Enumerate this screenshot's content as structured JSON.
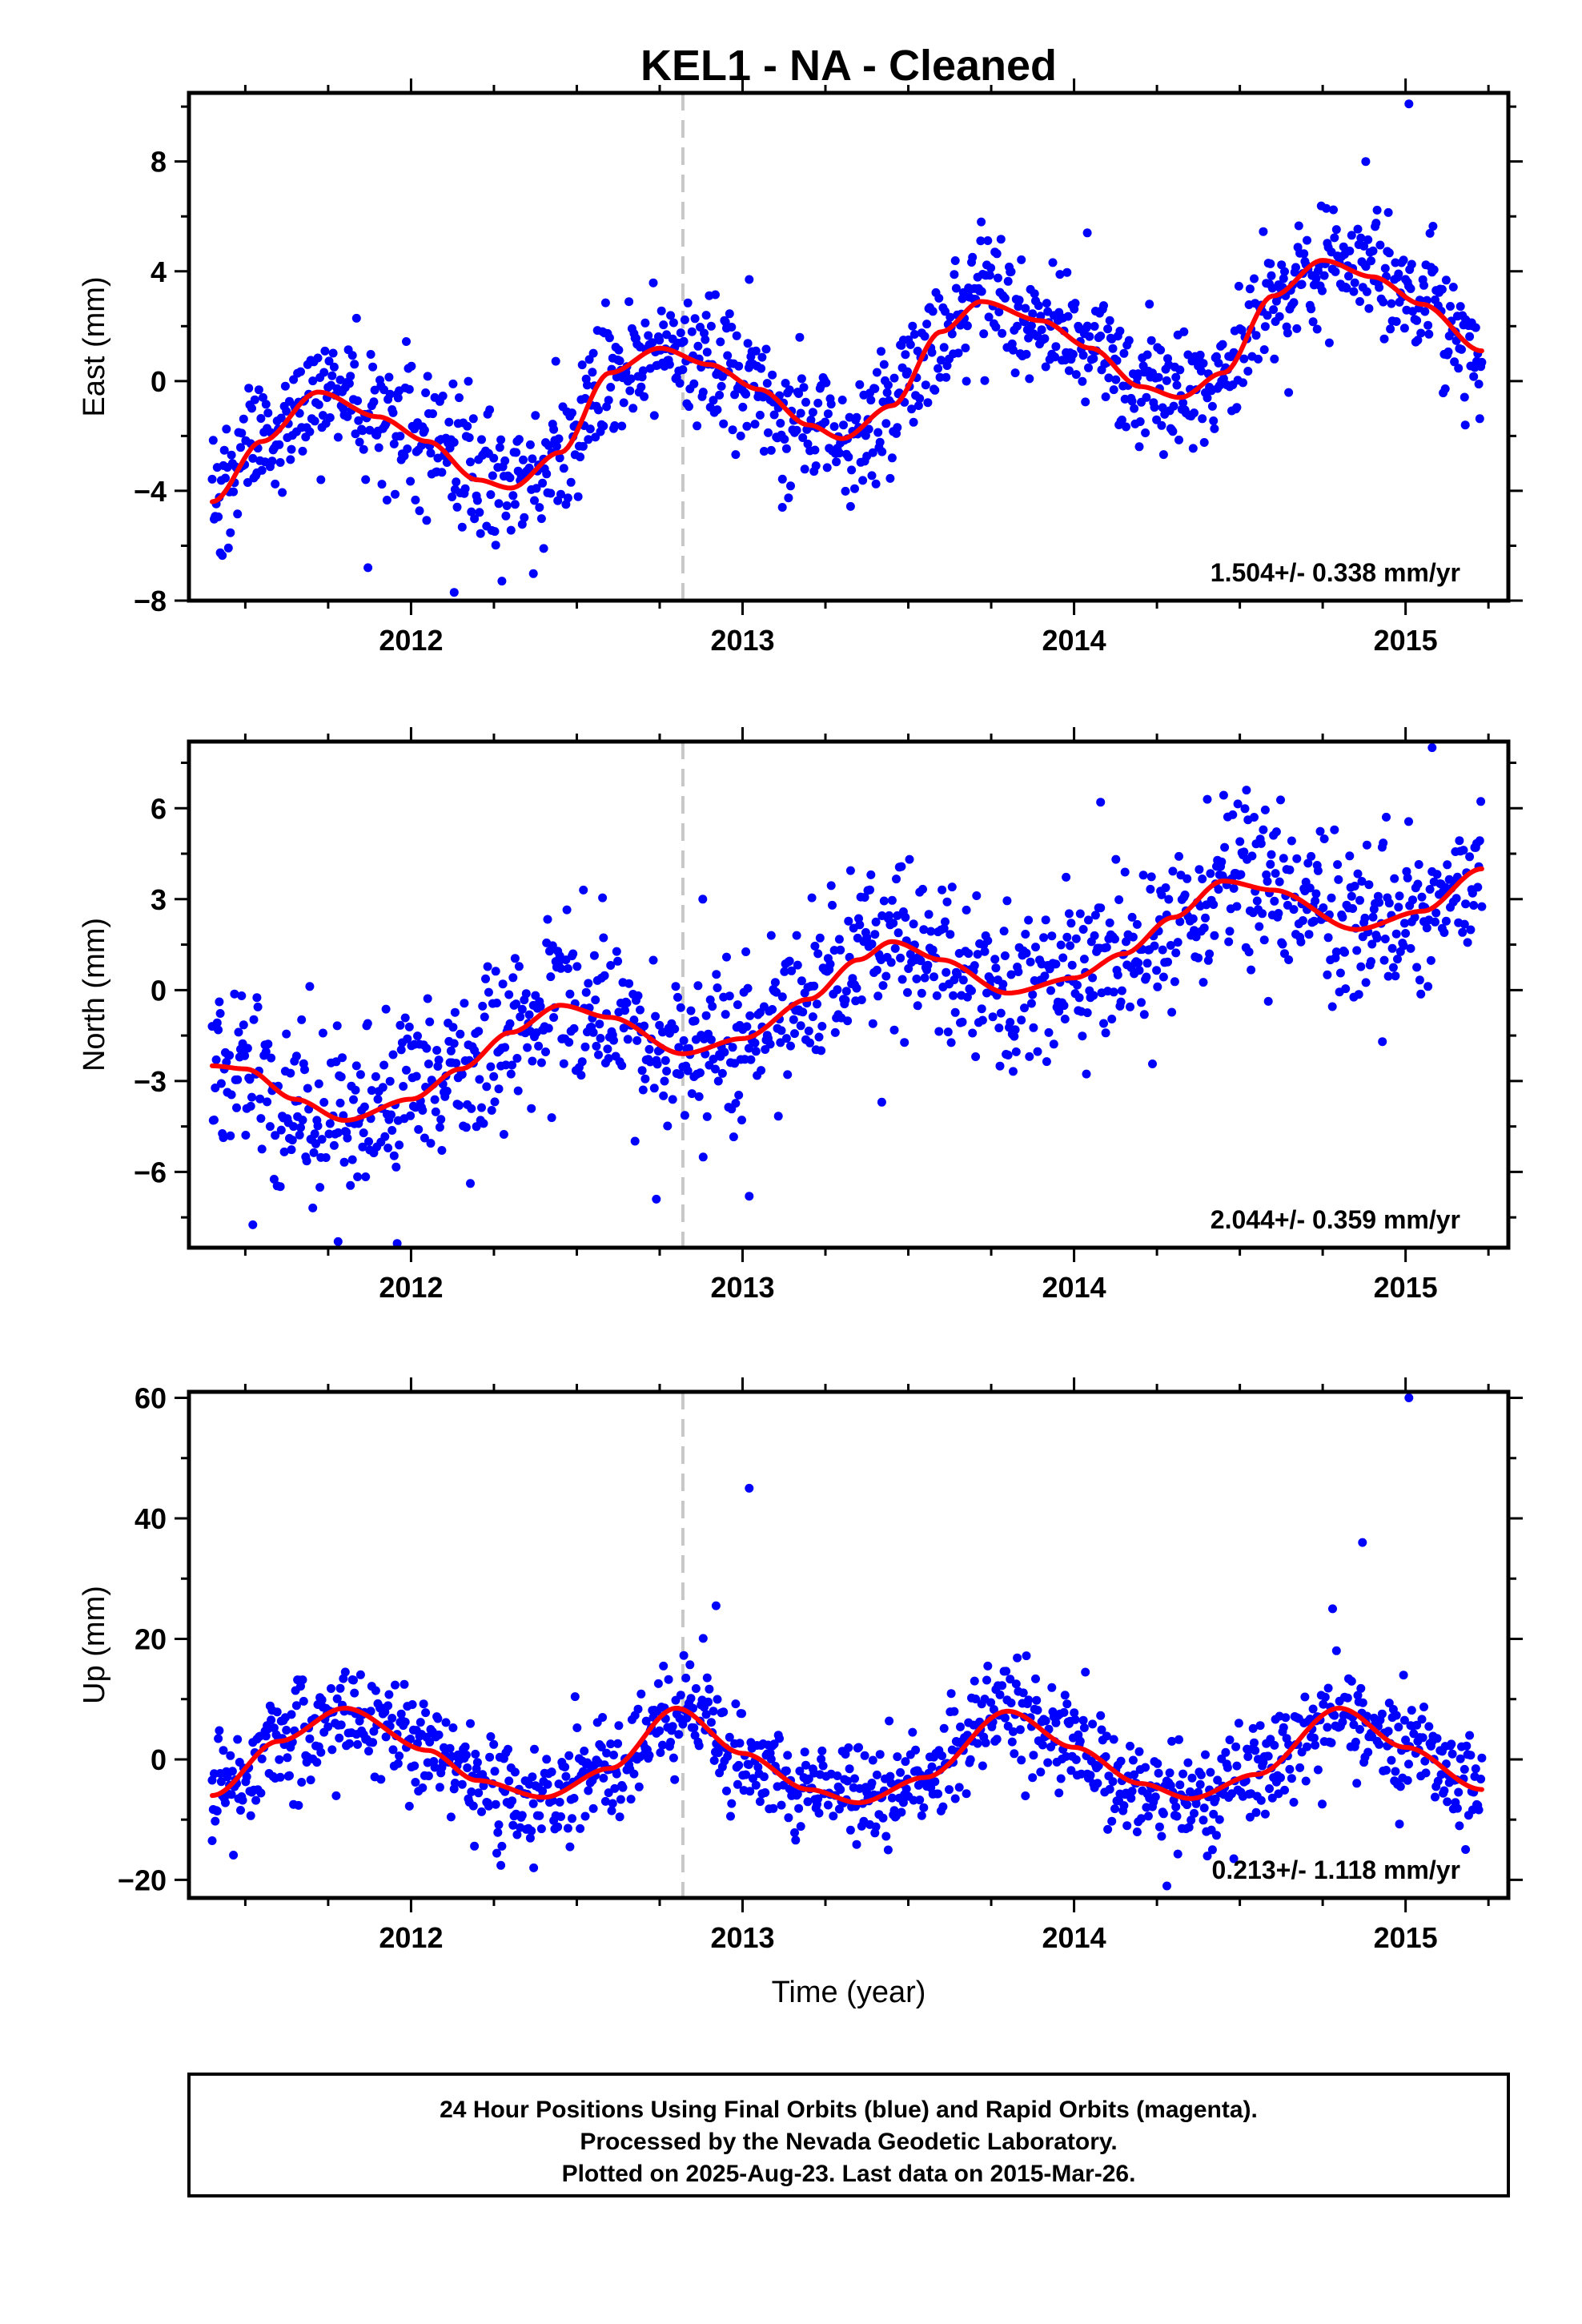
{
  "page_title": "KEL1  - NA - Cleaned",
  "xlabel": "Time (year)",
  "footer": [
    "24 Hour Positions Using Final Orbits (blue) and Rapid Orbits (magenta).",
    "Processed by the Nevada Geodetic Laboratory.",
    "Plotted on 2025-Aug-23. Last data on 2015-Mar-26."
  ],
  "colors": {
    "points": "#0000ff",
    "model": "#ff0000",
    "event_line": "#c8c8c8",
    "axes": "#000000"
  },
  "chart_data": [
    {
      "type": "scatter",
      "ylabel": "East (mm)",
      "x_ticks": [
        2012,
        2013,
        2014,
        2015
      ],
      "x_tick_labels": [
        "2012",
        "2013",
        "2014",
        "2015"
      ],
      "y_ticks": [
        -8,
        -4,
        0,
        4,
        8
      ],
      "y_tick_labels": [
        "−8",
        "−4",
        "0",
        "4",
        "8"
      ],
      "xlim": [
        2011.33,
        2015.31
      ],
      "ylim": [
        -8,
        10.5
      ],
      "rate_label": "1.504+/- 0.338 mm/yr",
      "event_line_x": 2012.82,
      "data_range": [
        2011.4,
        2015.23
      ],
      "model_curve": {
        "x": [
          2011.4,
          2011.55,
          2011.72,
          2011.9,
          2012.05,
          2012.2,
          2012.3,
          2012.45,
          2012.6,
          2012.75,
          2012.9,
          2013.05,
          2013.2,
          2013.3,
          2013.45,
          2013.6,
          2013.72,
          2013.9,
          2014.05,
          2014.2,
          2014.32,
          2014.45,
          2014.6,
          2014.75,
          2014.9,
          2015.05,
          2015.23
        ],
        "y": [
          -4.4,
          -2.2,
          -0.4,
          -1.3,
          -2.2,
          -3.6,
          -3.9,
          -2.6,
          0.3,
          1.2,
          0.6,
          -0.3,
          -1.6,
          -2.1,
          -0.9,
          1.8,
          2.9,
          2.2,
          1.2,
          -0.2,
          -0.6,
          0.3,
          3.1,
          4.4,
          3.8,
          2.8,
          1.1
        ]
      },
      "spread": 1.2,
      "outliers": [
        {
          "x": 2011.87,
          "y": -6.8
        },
        {
          "x": 2012.13,
          "y": -7.7
        },
        {
          "x": 2012.4,
          "y": -6.1
        },
        {
          "x": 2013.02,
          "y": 3.7
        },
        {
          "x": 2013.12,
          "y": -4.6
        },
        {
          "x": 2013.72,
          "y": 5.8
        },
        {
          "x": 2014.04,
          "y": 5.4
        },
        {
          "x": 2014.88,
          "y": 8.0
        },
        {
          "x": 2015.01,
          "y": 10.1
        },
        {
          "x": 2015.18,
          "y": -1.6
        }
      ]
    },
    {
      "type": "scatter",
      "ylabel": "North (mm)",
      "x_ticks": [
        2012,
        2013,
        2014,
        2015
      ],
      "x_tick_labels": [
        "2012",
        "2013",
        "2014",
        "2015"
      ],
      "y_ticks": [
        -6,
        -3,
        0,
        3,
        6
      ],
      "y_tick_labels": [
        "−6",
        "−3",
        "0",
        "3",
        "6"
      ],
      "xlim": [
        2011.33,
        2015.31
      ],
      "ylim": [
        -8.5,
        8.2
      ],
      "rate_label": "2.044+/- 0.359 mm/yr",
      "event_line_x": 2012.82,
      "data_range": [
        2011.4,
        2015.23
      ],
      "model_curve": {
        "x": [
          2011.4,
          2011.5,
          2011.65,
          2011.8,
          2012.0,
          2012.15,
          2012.3,
          2012.45,
          2012.6,
          2012.82,
          2013.0,
          2013.2,
          2013.35,
          2013.45,
          2013.6,
          2013.8,
          2014.0,
          2014.15,
          2014.3,
          2014.45,
          2014.6,
          2014.85,
          2015.05,
          2015.23
        ],
        "y": [
          -2.5,
          -2.6,
          -3.6,
          -4.3,
          -3.6,
          -2.6,
          -1.4,
          -0.5,
          -0.9,
          -2.1,
          -1.6,
          -0.3,
          1.0,
          1.6,
          1.0,
          -0.1,
          0.4,
          1.2,
          2.4,
          3.6,
          3.3,
          2.0,
          2.6,
          4.0
        ]
      },
      "spread": 1.3,
      "outliers": [
        {
          "x": 2011.78,
          "y": -8.3
        },
        {
          "x": 2012.52,
          "y": 3.3
        },
        {
          "x": 2012.74,
          "y": -6.9
        },
        {
          "x": 2012.88,
          "y": 3.0
        },
        {
          "x": 2013.02,
          "y": -6.8
        },
        {
          "x": 2013.42,
          "y": -3.7
        },
        {
          "x": 2014.08,
          "y": 6.2
        },
        {
          "x": 2014.52,
          "y": 6.6
        },
        {
          "x": 2015.08,
          "y": 8.0
        },
        {
          "x": 2014.93,
          "y": -1.7
        }
      ]
    },
    {
      "type": "scatter",
      "ylabel": "Up (mm)",
      "x_ticks": [
        2012,
        2013,
        2014,
        2015
      ],
      "x_tick_labels": [
        "2012",
        "2013",
        "2014",
        "2015"
      ],
      "y_ticks": [
        -20,
        0,
        20,
        40,
        60
      ],
      "y_tick_labels": [
        "−20",
        "0",
        "20",
        "40",
        "60"
      ],
      "xlim": [
        2011.33,
        2015.31
      ],
      "ylim": [
        -23,
        61
      ],
      "rate_label": "0.213+/- 1.118 mm/yr",
      "event_line_x": 2012.82,
      "data_range": [
        2011.4,
        2015.23
      ],
      "model_curve": {
        "x": [
          2011.4,
          2011.6,
          2011.8,
          2012.05,
          2012.2,
          2012.4,
          2012.6,
          2012.8,
          2013.0,
          2013.2,
          2013.35,
          2013.55,
          2013.8,
          2014.0,
          2014.2,
          2014.35,
          2014.55,
          2014.8,
          2015.0,
          2015.23
        ],
        "y": [
          -6,
          3,
          8.5,
          1.5,
          -3.5,
          -6.3,
          -1.5,
          8.5,
          1,
          -5,
          -7.2,
          -3,
          8,
          2,
          -4,
          -6.5,
          -2.5,
          8.5,
          2,
          -5
        ]
      },
      "spread": 4.5,
      "outliers": [
        {
          "x": 2012.92,
          "y": 25.5
        },
        {
          "x": 2013.02,
          "y": 45
        },
        {
          "x": 2014.87,
          "y": 36
        },
        {
          "x": 2015.01,
          "y": 60
        },
        {
          "x": 2014.28,
          "y": -21
        },
        {
          "x": 2012.37,
          "y": -18
        },
        {
          "x": 2014.78,
          "y": 25
        },
        {
          "x": 2011.4,
          "y": -13.5
        }
      ]
    }
  ]
}
